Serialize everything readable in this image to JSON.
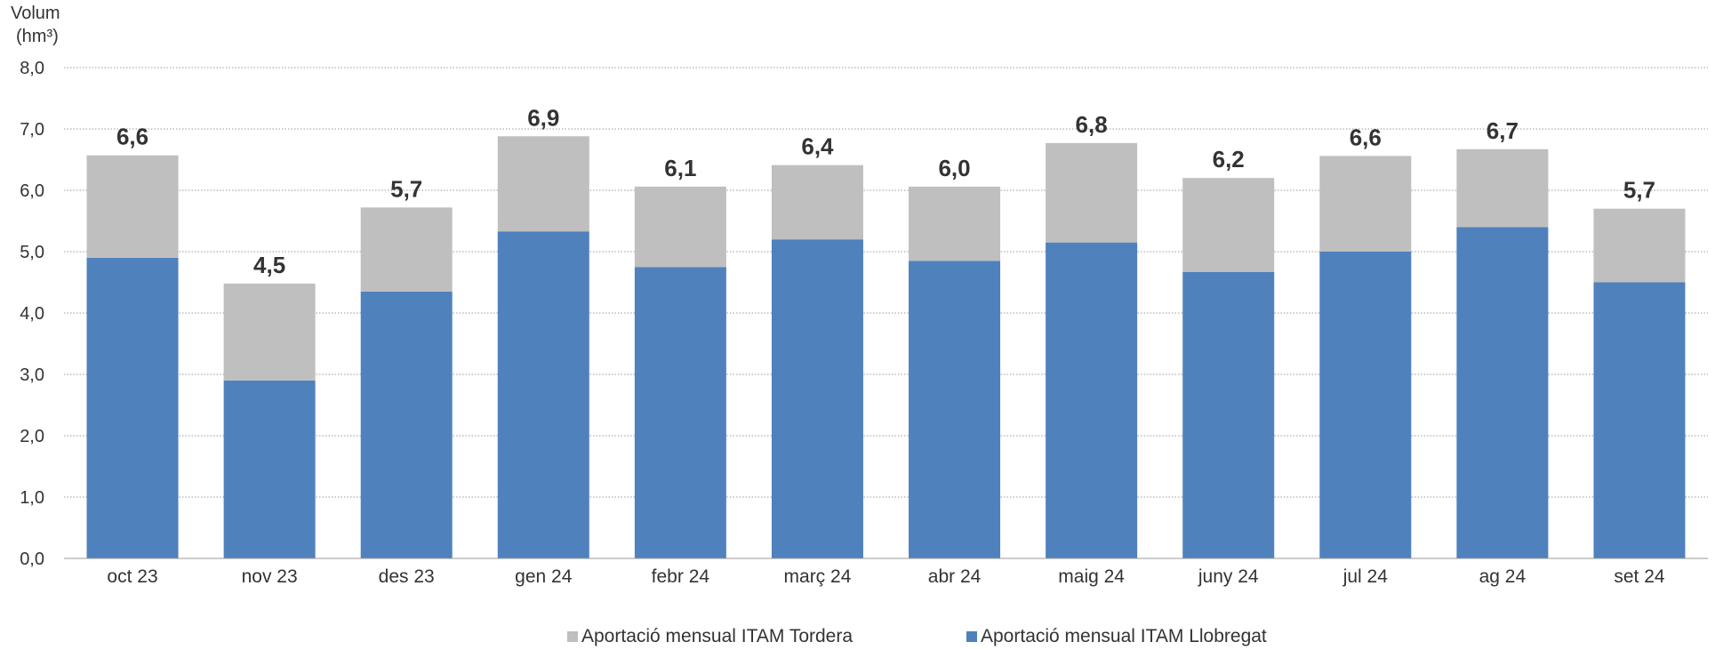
{
  "chart_data": {
    "type": "bar",
    "stacked": true,
    "ylabel": [
      "Volum",
      "(hm³)"
    ],
    "ylim": [
      0,
      8
    ],
    "ytick_labels": [
      "0,0",
      "1,0",
      "2,0",
      "3,0",
      "4,0",
      "5,0",
      "6,0",
      "7,0",
      "8,0"
    ],
    "grid": true,
    "legend_position": "bottom",
    "categories": [
      "oct 23",
      "nov 23",
      "des 23",
      "gen 24",
      "febr 24",
      "març 24",
      "abr 24",
      "maig 24",
      "juny 24",
      "jul 24",
      "ag 24",
      "set 24"
    ],
    "series": [
      {
        "name": "Aportació mensual ITAM Llobregat",
        "color": "#4f81bd",
        "values": [
          4.9,
          2.9,
          4.35,
          5.33,
          4.75,
          5.2,
          4.85,
          5.15,
          4.67,
          5.0,
          5.4,
          4.5
        ]
      },
      {
        "name": "Aportació mensual ITAM Tordera",
        "color": "#bfbfbf",
        "values": [
          1.67,
          1.58,
          1.37,
          1.55,
          1.31,
          1.21,
          1.21,
          1.62,
          1.53,
          1.56,
          1.27,
          1.2
        ]
      }
    ],
    "totals": [
      "6,6",
      "4,5",
      "5,7",
      "6,9",
      "6,1",
      "6,4",
      "6,0",
      "6,8",
      "6,2",
      "6,6",
      "6,7",
      "5,7"
    ]
  }
}
